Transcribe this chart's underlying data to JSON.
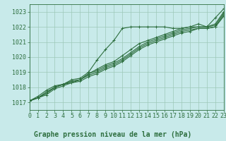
{
  "bg_color": "#c8eaea",
  "plot_bg_color": "#c8eaea",
  "grid_color": "#9dc8b8",
  "line_color": "#2d6e3e",
  "xlabel": "Graphe pression niveau de la mer (hPa)",
  "ylim": [
    1016.5,
    1023.5
  ],
  "xlim": [
    0,
    23
  ],
  "yticks": [
    1017,
    1018,
    1019,
    1020,
    1021,
    1022,
    1023
  ],
  "xticks": [
    0,
    1,
    2,
    3,
    4,
    5,
    6,
    7,
    8,
    9,
    10,
    11,
    12,
    13,
    14,
    15,
    16,
    17,
    18,
    19,
    20,
    21,
    22,
    23
  ],
  "series": [
    [
      1017.1,
      1017.4,
      1017.8,
      1018.1,
      1018.2,
      1018.5,
      1018.6,
      1019.0,
      1019.8,
      1020.5,
      1021.1,
      1021.9,
      1022.0,
      1022.0,
      1022.0,
      1022.0,
      1022.0,
      1021.9,
      1021.9,
      1022.0,
      1022.2,
      1022.0,
      1022.6,
      1023.2
    ],
    [
      1017.1,
      1017.3,
      1017.7,
      1018.0,
      1018.2,
      1018.4,
      1018.5,
      1018.9,
      1019.2,
      1019.5,
      1019.7,
      1020.1,
      1020.5,
      1020.9,
      1021.1,
      1021.3,
      1021.5,
      1021.7,
      1021.9,
      1022.0,
      1022.0,
      1022.0,
      1022.2,
      1023.0
    ],
    [
      1017.1,
      1017.3,
      1017.6,
      1018.0,
      1018.2,
      1018.4,
      1018.5,
      1018.9,
      1019.1,
      1019.4,
      1019.6,
      1019.9,
      1020.3,
      1020.7,
      1021.0,
      1021.2,
      1021.4,
      1021.6,
      1021.8,
      1021.9,
      1022.0,
      1022.0,
      1022.1,
      1022.9
    ],
    [
      1017.1,
      1017.3,
      1017.6,
      1018.0,
      1018.2,
      1018.3,
      1018.5,
      1018.8,
      1019.0,
      1019.3,
      1019.5,
      1019.8,
      1020.2,
      1020.6,
      1020.9,
      1021.1,
      1021.3,
      1021.5,
      1021.7,
      1021.8,
      1021.9,
      1021.9,
      1022.0,
      1022.8
    ],
    [
      1017.1,
      1017.3,
      1017.5,
      1017.9,
      1018.1,
      1018.3,
      1018.4,
      1018.7,
      1018.9,
      1019.2,
      1019.4,
      1019.7,
      1020.1,
      1020.5,
      1020.8,
      1021.0,
      1021.2,
      1021.4,
      1021.6,
      1021.7,
      1021.9,
      1021.9,
      1022.0,
      1022.7
    ]
  ],
  "marker": "+",
  "markersize": 3,
  "linewidth": 0.8,
  "xlabel_fontsize": 7,
  "tick_fontsize": 6
}
